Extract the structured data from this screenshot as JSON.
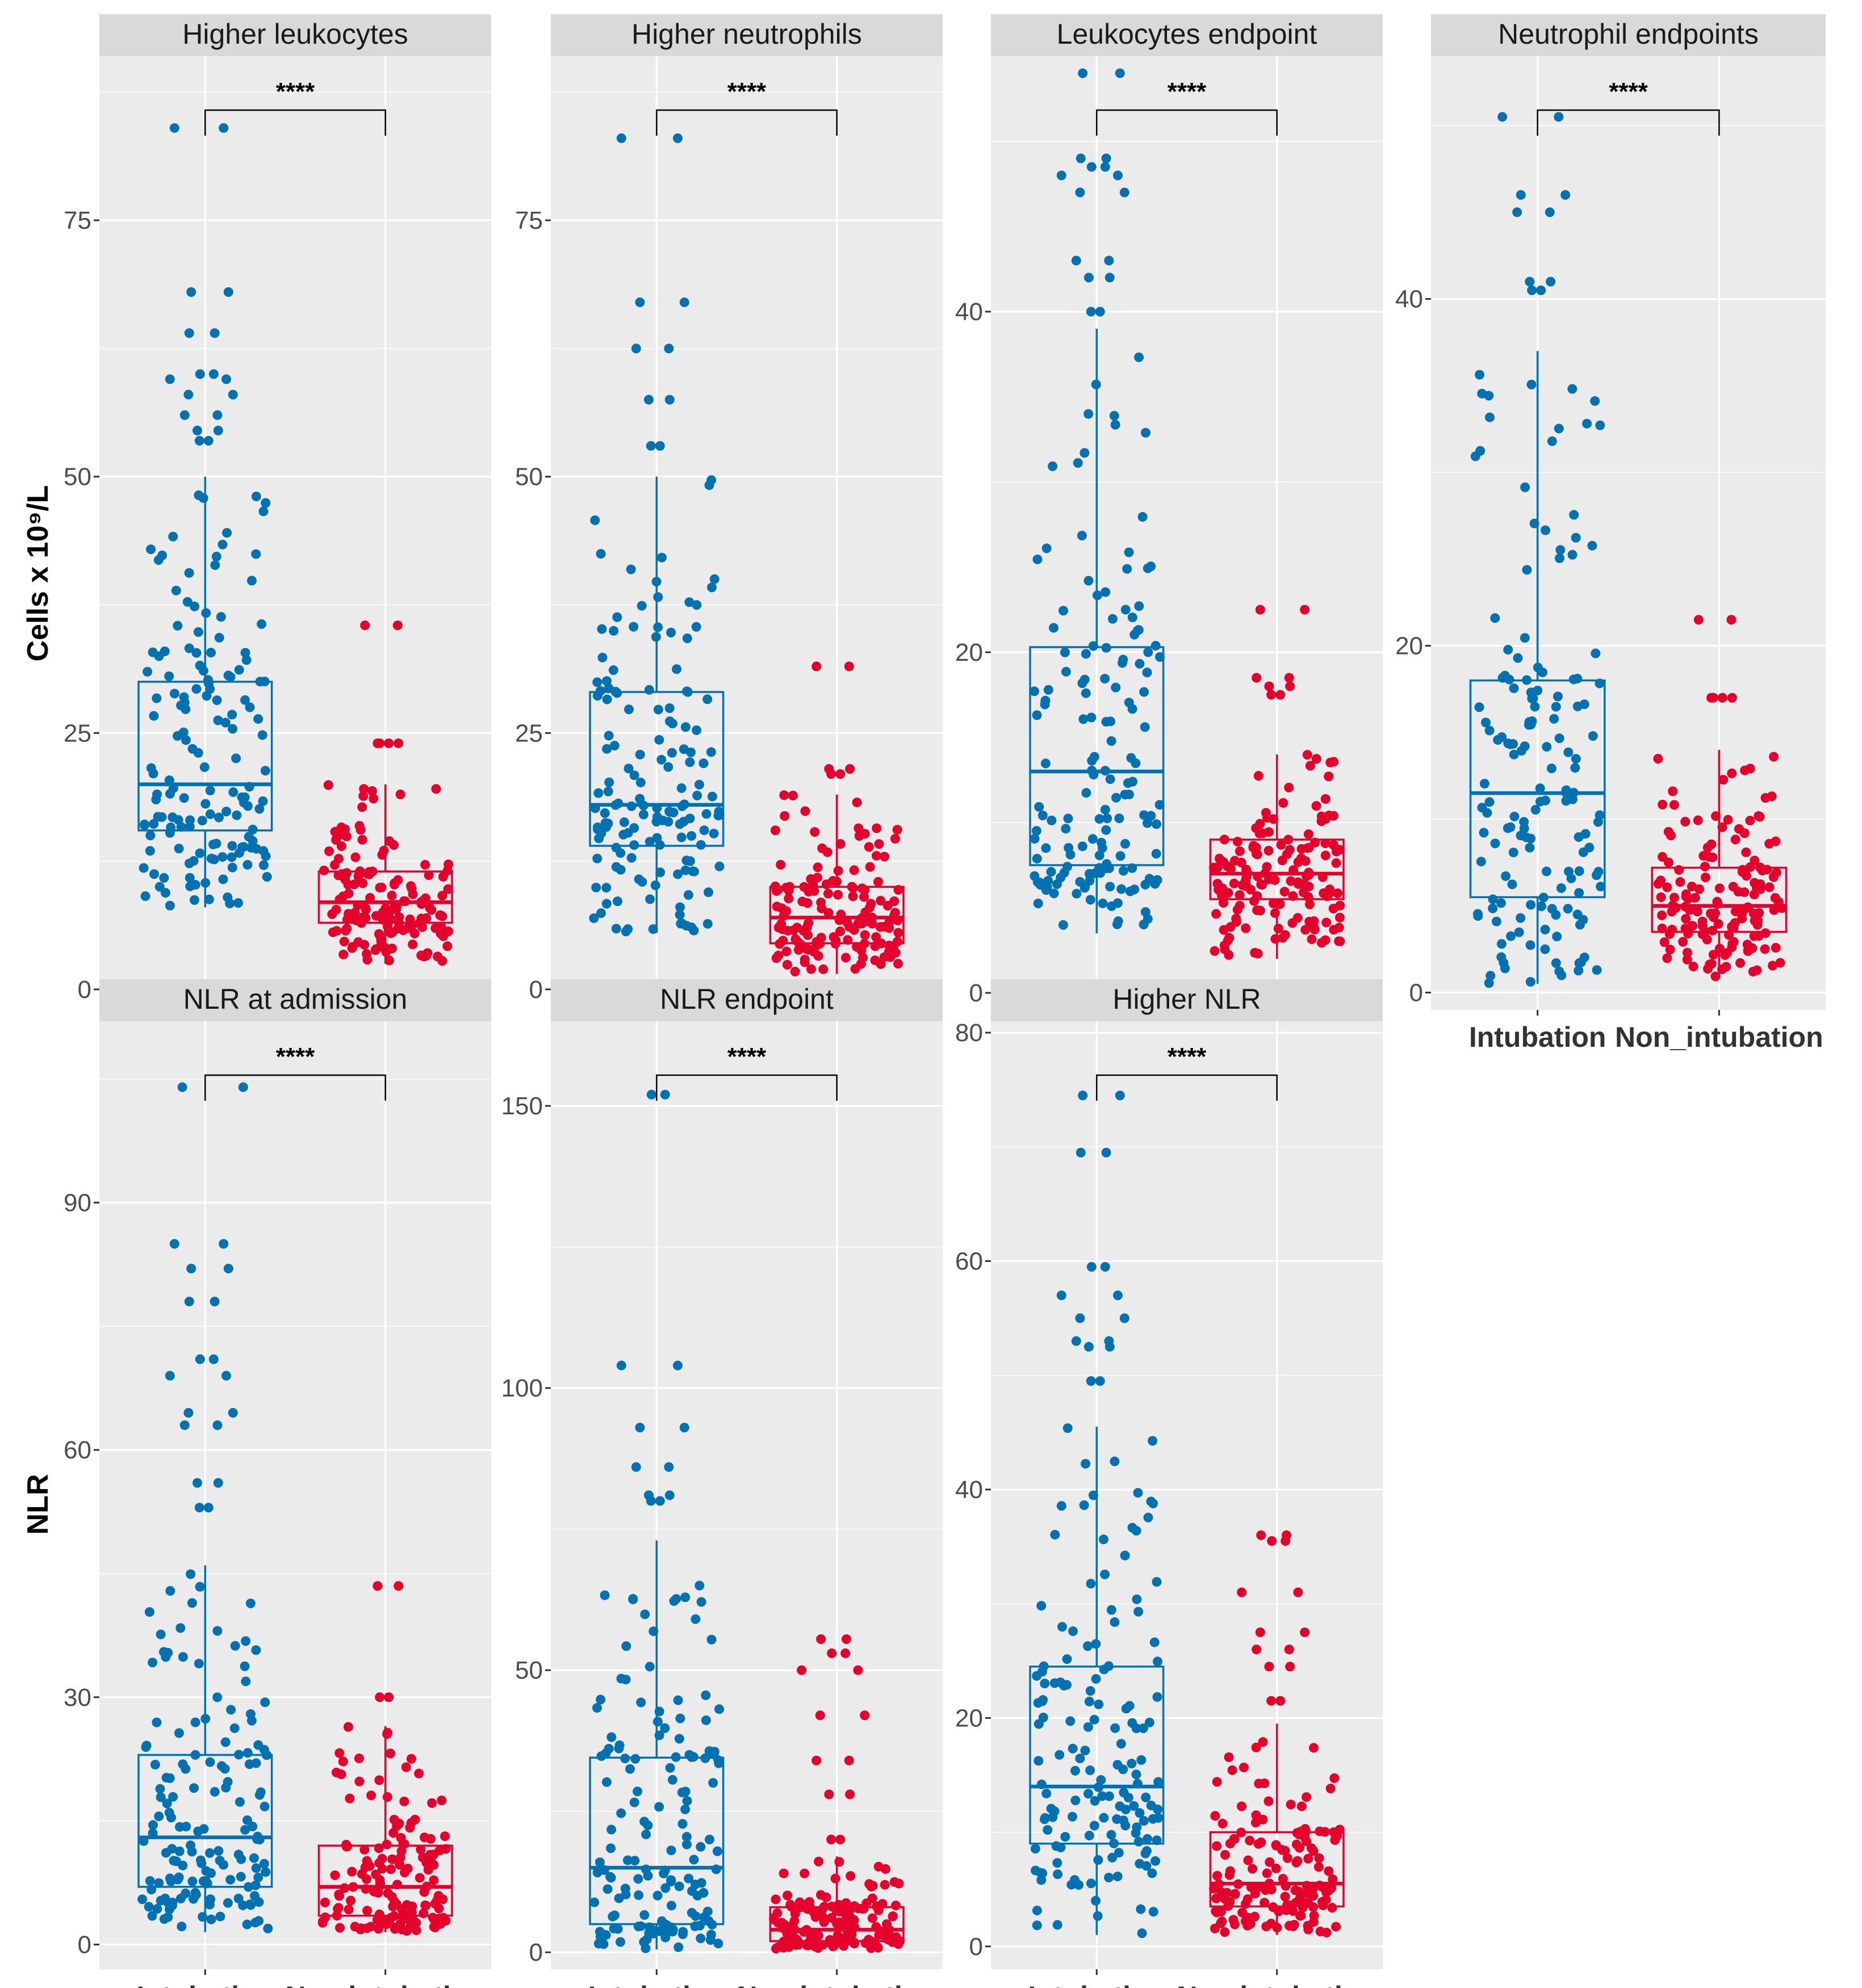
{
  "colors": {
    "intubation": "#0072B2",
    "non_intubation": "#E4002B",
    "panel_bg": "#EBEBEB",
    "strip_bg": "#D9D9D9"
  },
  "y_axis_labels": {
    "row1": "Cells x 10⁹/L",
    "row2": "NLR"
  },
  "chart_data": [
    {
      "type": "box",
      "title": "Higher leukocytes",
      "categories": [
        "Intubation",
        "Non intubation"
      ],
      "ylim": [
        -2,
        91
      ],
      "yticks": [
        0,
        25,
        50,
        75
      ],
      "significance": "****",
      "series": [
        {
          "name": "Intubation",
          "box": {
            "whisker_low": 8,
            "q1": 15.5,
            "median": 20,
            "q3": 30,
            "whisker_high": 50
          },
          "outliers": [
            53.5,
            54.5,
            56,
            58,
            59.5,
            60,
            64,
            68,
            84
          ]
        },
        {
          "name": "Non intubation",
          "box": {
            "whisker_low": 2.5,
            "q1": 6.5,
            "median": 8.5,
            "q3": 11.5,
            "whisker_high": 20
          },
          "outliers": [
            24,
            24,
            35.5
          ]
        }
      ]
    },
    {
      "type": "box",
      "title": "Higher neutrophils",
      "categories": [
        "Intubation",
        "Non intubation"
      ],
      "ylim": [
        -2,
        91
      ],
      "yticks": [
        0,
        25,
        50,
        75
      ],
      "significance": "****",
      "series": [
        {
          "name": "Intubation",
          "box": {
            "whisker_low": 5.5,
            "q1": 14,
            "median": 18,
            "q3": 29,
            "whisker_high": 50
          },
          "outliers": [
            53,
            57.5,
            62.5,
            67,
            83
          ]
        },
        {
          "name": "Non intubation",
          "box": {
            "whisker_low": 1.5,
            "q1": 4.5,
            "median": 7,
            "q3": 10,
            "whisker_high": 19
          },
          "outliers": [
            21,
            21.5,
            31.5
          ]
        }
      ]
    },
    {
      "type": "box",
      "title": "Leukocytes endpoint",
      "categories": [
        "Intubation",
        "Non intubation"
      ],
      "ylim": [
        -1,
        55
      ],
      "yticks": [
        0,
        20,
        40
      ],
      "significance": "****",
      "series": [
        {
          "name": "Intubation",
          "box": {
            "whisker_low": 3.5,
            "q1": 7.5,
            "median": 13,
            "q3": 20.3,
            "whisker_high": 39
          },
          "outliers": [
            40,
            42,
            43,
            47,
            48,
            48.5,
            49,
            54
          ]
        },
        {
          "name": "Non intubation",
          "box": {
            "whisker_low": 2,
            "q1": 5.5,
            "median": 7,
            "q3": 9,
            "whisker_high": 14
          },
          "outliers": [
            17.5,
            18,
            18.5,
            22.5
          ]
        }
      ]
    },
    {
      "type": "box",
      "title": "Neutrophil endpoints",
      "categories": [
        "Intubation",
        "Non_intubation"
      ],
      "ylim": [
        -1,
        54
      ],
      "yticks": [
        0,
        20,
        40
      ],
      "significance": "****",
      "series": [
        {
          "name": "Intubation",
          "box": {
            "whisker_low": 0.5,
            "q1": 5.5,
            "median": 11.5,
            "q3": 18,
            "whisker_high": 37
          },
          "outliers": [
            40.5,
            41,
            45,
            46,
            50.5
          ]
        },
        {
          "name": "Non_intubation",
          "box": {
            "whisker_low": 0.8,
            "q1": 3.5,
            "median": 5,
            "q3": 7.2,
            "whisker_high": 14
          },
          "outliers": [
            17,
            17,
            21.5
          ]
        }
      ]
    },
    {
      "type": "box",
      "title": "NLR at admission",
      "categories": [
        "Intubation",
        "Non intubation"
      ],
      "ylim": [
        -3,
        112
      ],
      "yticks": [
        0,
        30,
        60,
        90
      ],
      "significance": "****",
      "series": [
        {
          "name": "Intubation",
          "box": {
            "whisker_low": 1.5,
            "q1": 7,
            "median": 13,
            "q3": 23,
            "whisker_high": 46
          },
          "outliers": [
            53,
            56,
            63,
            64.5,
            69,
            71,
            78,
            82,
            85,
            104
          ]
        },
        {
          "name": "Non intubation",
          "box": {
            "whisker_low": 1.5,
            "q1": 3.5,
            "median": 7,
            "q3": 12,
            "whisker_high": 26.5
          },
          "outliers": [
            30,
            43.5
          ]
        }
      ]
    },
    {
      "type": "box",
      "title": "NLR endpoint",
      "categories": [
        "Intubation",
        "Non intubation"
      ],
      "ylim": [
        -3,
        165
      ],
      "yticks": [
        0,
        50,
        100,
        150
      ],
      "significance": "****",
      "series": [
        {
          "name": "Intubation",
          "box": {
            "whisker_low": 0.5,
            "q1": 5,
            "median": 15,
            "q3": 34.5,
            "whisker_high": 73
          },
          "outliers": [
            80,
            81,
            86,
            93,
            104,
            152
          ]
        },
        {
          "name": "Non intubation",
          "box": {
            "whisker_low": 0.5,
            "q1": 2,
            "median": 4,
            "q3": 8,
            "whisker_high": 17
          },
          "outliers": [
            20,
            28,
            34,
            42,
            50,
            53,
            55.5
          ]
        }
      ]
    },
    {
      "type": "box",
      "title": "Higher NLR",
      "categories": [
        "Intubation",
        "Non intubation"
      ],
      "ylim": [
        -2,
        81
      ],
      "yticks": [
        0,
        20,
        40,
        60,
        80
      ],
      "significance": "****",
      "series": [
        {
          "name": "Intubation",
          "box": {
            "whisker_low": 1,
            "q1": 9,
            "median": 14,
            "q3": 24.5,
            "whisker_high": 45.5
          },
          "outliers": [
            49.5,
            52.5,
            53,
            55,
            57,
            59.5,
            69.5,
            74.5
          ]
        },
        {
          "name": "Non intubation",
          "box": {
            "whisker_low": 1,
            "q1": 3.5,
            "median": 5.5,
            "q3": 10,
            "whisker_high": 19.5
          },
          "outliers": [
            21.5,
            24.5,
            26,
            27.5,
            31,
            35.5,
            36
          ]
        }
      ]
    }
  ]
}
